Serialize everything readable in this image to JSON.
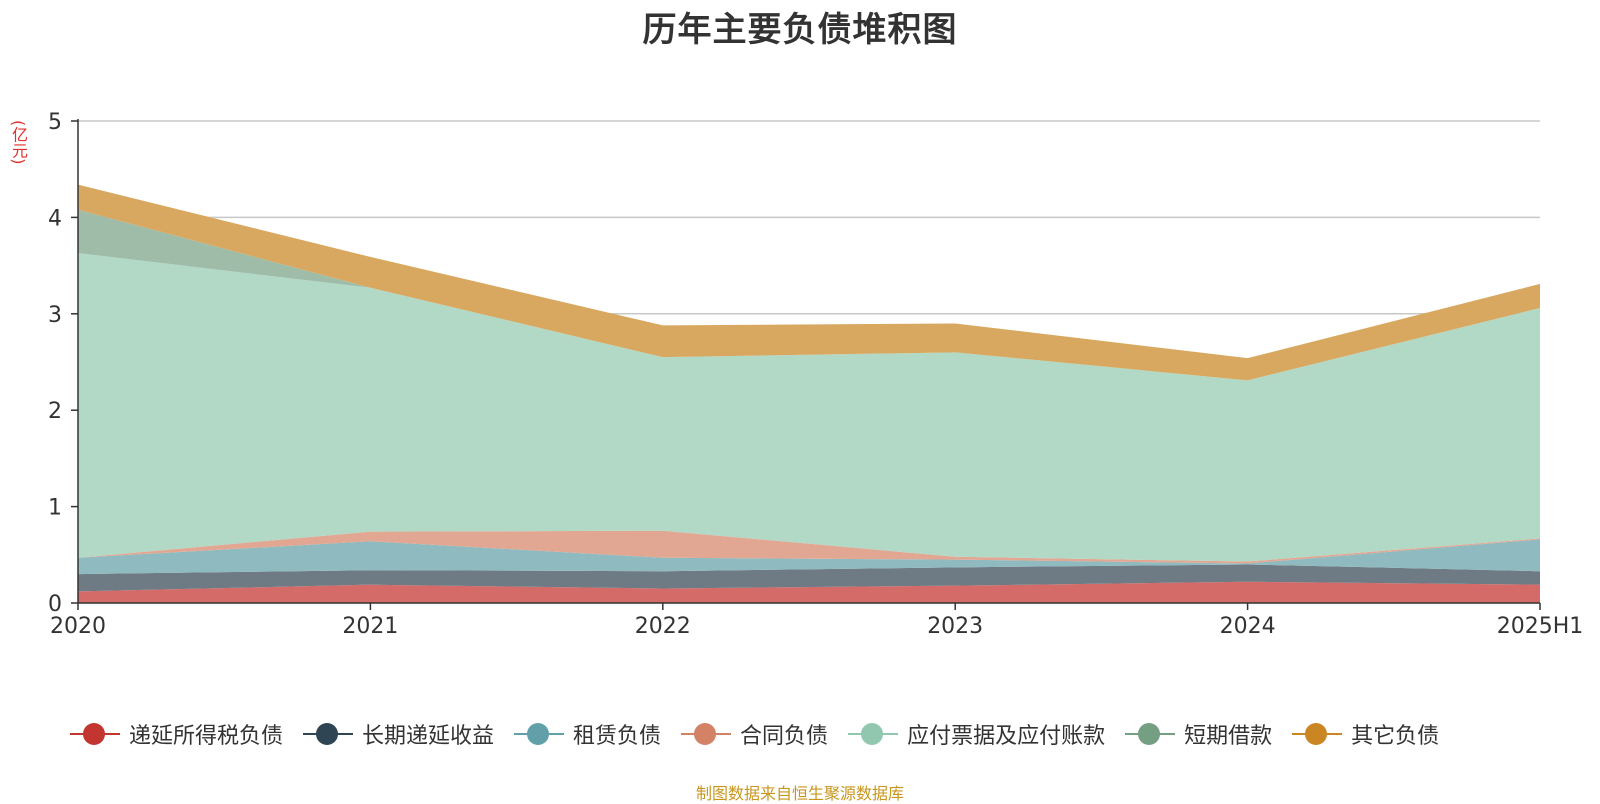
{
  "chart_data": {
    "type": "area",
    "title": "历年主要负债堆积图",
    "unit_label": "(亿元)",
    "source_note": "制图数据来自恒生聚源数据库",
    "categories": [
      "2020",
      "2021",
      "2022",
      "2023",
      "2024",
      "2025H1"
    ],
    "ylim": [
      0,
      5
    ],
    "yticks": [
      "0",
      "1",
      "2",
      "3",
      "4",
      "5"
    ],
    "grid": true,
    "legend_position": "bottom",
    "stacked": true,
    "series": [
      {
        "name": "递延所得税负债",
        "color": "#c23531",
        "fill": "#d46b69",
        "values": [
          0.12,
          0.19,
          0.15,
          0.18,
          0.22,
          0.19
        ]
      },
      {
        "name": "长期递延收益",
        "color": "#2f4554",
        "fill": "#6e7b85",
        "values": [
          0.18,
          0.15,
          0.18,
          0.19,
          0.18,
          0.14
        ]
      },
      {
        "name": "租赁负债",
        "color": "#61a0a8",
        "fill": "#8fbac0",
        "values": [
          0.17,
          0.3,
          0.14,
          0.08,
          0.01,
          0.33
        ]
      },
      {
        "name": "合同负债",
        "color": "#d48265",
        "fill": "#e1a792",
        "values": [
          0.0,
          0.1,
          0.28,
          0.03,
          0.02,
          0.01
        ]
      },
      {
        "name": "应付票据及应付账款",
        "color": "#91c7ae",
        "fill": "#b2d8c6",
        "values": [
          3.16,
          2.53,
          1.8,
          2.12,
          1.88,
          2.39
        ]
      },
      {
        "name": "短期借款",
        "color": "#749f83",
        "fill": "#9ebca8",
        "values": [
          0.45,
          0.0,
          0.0,
          0.0,
          0.0,
          0.0
        ]
      },
      {
        "name": "其它负债",
        "color": "#ca8622",
        "fill": "#d9a860",
        "values": [
          0.26,
          0.32,
          0.33,
          0.3,
          0.23,
          0.25
        ]
      }
    ]
  }
}
